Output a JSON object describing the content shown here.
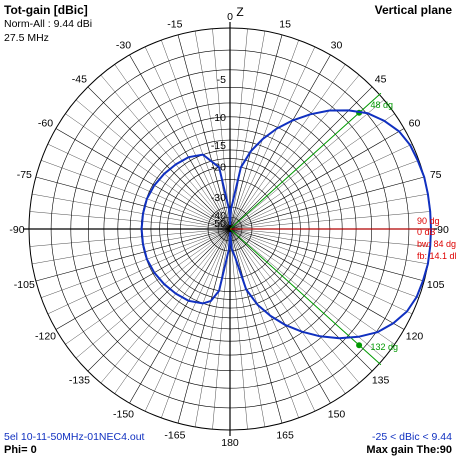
{
  "chart_data": {
    "type": "polar",
    "title": "Tot-gain [dBic]",
    "subtitle_lines": [
      "Norm-All : 9.44 dBi",
      "27.5 MHz"
    ],
    "plane_label": "Vertical plane",
    "zenith_label": "Z",
    "angle_unit": "degrees (zenith = 0, clockwise)",
    "angle_labels": [
      "0",
      "15",
      "30",
      "45",
      "60",
      "75",
      "90",
      "105",
      "120",
      "135",
      "150",
      "165",
      "180",
      "-165",
      "-150",
      "-135",
      "-120",
      "-105",
      "-90",
      "-75",
      "-60",
      "-45",
      "-30",
      "-15"
    ],
    "ring_labels": [
      "-5",
      "-10",
      "-15",
      "-20",
      "-30",
      "-40",
      "-50"
    ],
    "markers": [
      {
        "label": "48 dg",
        "angle": 48,
        "color": "#009900"
      },
      {
        "label": "132 dg",
        "angle": 132,
        "color": "#009900"
      },
      {
        "label": "90 dg",
        "angle": 90,
        "color": "#dd0000"
      }
    ],
    "info_labels": [
      "90 dg",
      "0 dB",
      "bw: 84 dg",
      "fb: 14.1 dB"
    ],
    "footer_left": "5el 10-11-50MHz-01NEC4.out",
    "footer_right_range": "-25 < dBic < 9.44",
    "phi_label": "Phi= 0",
    "max_gain_label": "Max gain The:90",
    "series": [
      {
        "color": "#1030c0",
        "angle_deg": [
          0,
          3,
          6,
          10,
          15,
          20,
          25,
          30,
          35,
          40,
          45,
          50,
          55,
          60,
          65,
          70,
          75,
          80,
          85,
          90,
          95,
          100,
          105,
          110,
          115,
          120,
          125,
          130,
          135,
          140,
          145,
          150,
          155,
          160,
          165,
          170,
          175,
          177,
          180,
          183,
          186,
          190,
          195,
          200,
          210,
          220,
          230,
          240,
          250,
          260,
          270,
          280,
          290,
          300,
          310,
          320,
          330,
          340,
          350,
          354,
          357,
          360
        ],
        "gain_db": [
          -40,
          -30,
          -25,
          -20,
          -15.7,
          -12.7,
          -10.2,
          -8.1,
          -6.2,
          -4.5,
          -3.1,
          -1.9,
          -1.1,
          -0.5,
          -0.2,
          -0.1,
          0,
          0,
          0,
          0,
          0,
          0,
          -0.1,
          -0.2,
          -0.5,
          -1.1,
          -1.9,
          -3.1,
          -4.5,
          -6.2,
          -8.1,
          -10.2,
          -12.7,
          -15.7,
          -20,
          -25,
          -30,
          -40,
          -40,
          -30,
          -25,
          -20,
          -17,
          -16,
          -15.2,
          -14.9,
          -14.6,
          -14.3,
          -14.1,
          -14.1,
          -14.1,
          -14.1,
          -14.1,
          -14.3,
          -14.6,
          -14.9,
          -15.2,
          -16,
          -20,
          -25,
          -30,
          -40
        ]
      }
    ]
  }
}
